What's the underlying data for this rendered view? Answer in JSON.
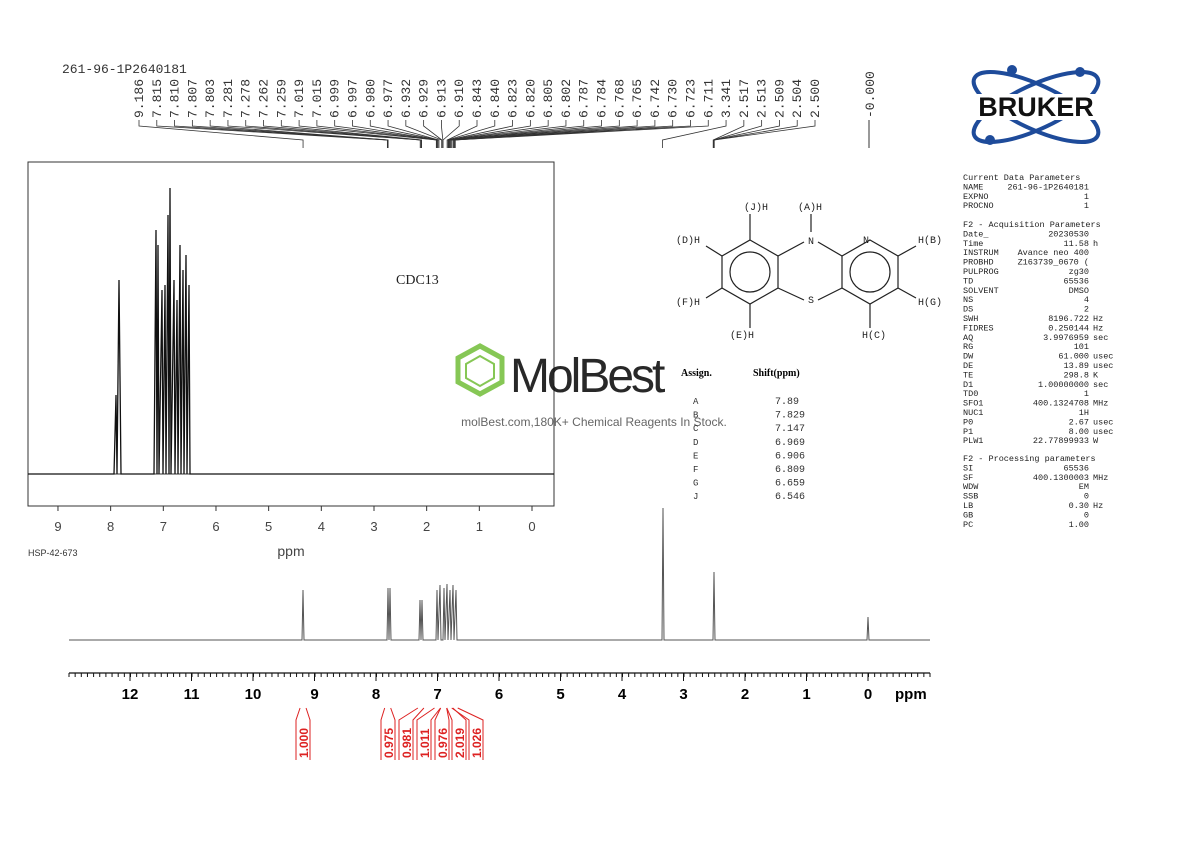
{
  "header": {
    "sample_id": "261-96-1P2640181",
    "solvent_note": "CDC13",
    "experiment_id": "HSP-42-673",
    "logo": "BRUKER"
  },
  "peak_labels": [
    "9.186",
    "7.815",
    "7.810",
    "7.807",
    "7.803",
    "7.281",
    "7.278",
    "7.262",
    "7.259",
    "7.019",
    "7.015",
    "6.999",
    "6.997",
    "6.980",
    "6.977",
    "6.932",
    "6.929",
    "6.913",
    "6.910",
    "6.843",
    "6.840",
    "6.823",
    "6.820",
    "6.805",
    "6.802",
    "6.787",
    "6.784",
    "6.768",
    "6.765",
    "6.742",
    "6.730",
    "6.723",
    "6.711",
    "3.341",
    "2.517",
    "2.513",
    "2.509",
    "2.504",
    "2.500"
  ],
  "reference_peak_label": "-0.000",
  "main_axis": {
    "ticks": [
      12,
      11,
      10,
      9,
      8,
      7,
      6,
      5,
      4,
      3,
      2,
      1,
      0
    ],
    "unit": "ppm"
  },
  "inset_axis": {
    "ticks": [
      9,
      8,
      7,
      6,
      5,
      4,
      3,
      2,
      1,
      0
    ],
    "unit": "ppm"
  },
  "integrals": [
    "1.000",
    "0.975",
    "0.981",
    "1.011",
    "0.976",
    "2.019",
    "1.026"
  ],
  "structure": {
    "labels": [
      "(J)H",
      "(A)H",
      "(D)H",
      "N",
      "N",
      "H(B)",
      "(F)H",
      "S",
      "H(G)",
      "(E)H",
      "H(C)"
    ]
  },
  "assignments": {
    "headers": [
      "Assign.",
      "Shift(ppm)"
    ],
    "rows": [
      [
        "A",
        "7.89"
      ],
      [
        "B",
        "7.829"
      ],
      [
        "C",
        "7.147"
      ],
      [
        "D",
        "6.969"
      ],
      [
        "E",
        "6.906"
      ],
      [
        "F",
        "6.809"
      ],
      [
        "G",
        "6.659"
      ],
      [
        "J",
        "6.546"
      ]
    ]
  },
  "watermark": {
    "brand": "MolBest",
    "tagline": "molBest.com,180K+ Chemical Reagents In Stock."
  },
  "parameters": [
    {
      "title": "Current Data Parameters",
      "rows": [
        [
          "NAME",
          "261-96-1P2640181"
        ],
        [
          "EXPNO",
          "1"
        ],
        [
          "PROCNO",
          "1"
        ]
      ]
    },
    {
      "title": "F2 - Acquisition Parameters",
      "rows": [
        [
          "Date_",
          "20230530"
        ],
        [
          "Time",
          "11.58",
          "h"
        ],
        [
          "INSTRUM",
          "Avance neo 400"
        ],
        [
          "PROBHD",
          "Z163739_0670 ("
        ],
        [
          "PULPROG",
          "zg30"
        ],
        [
          "TD",
          "65536"
        ],
        [
          "SOLVENT",
          "DMSO"
        ],
        [
          "NS",
          "4"
        ],
        [
          "DS",
          "2"
        ],
        [
          "SWH",
          "8196.722",
          "Hz"
        ],
        [
          "FIDRES",
          "0.250144",
          "Hz"
        ],
        [
          "AQ",
          "3.9976959",
          "sec"
        ],
        [
          "RG",
          "101"
        ],
        [
          "DW",
          "61.000",
          "usec"
        ],
        [
          "DE",
          "13.89",
          "usec"
        ],
        [
          "TE",
          "298.8",
          "K"
        ],
        [
          "D1",
          "1.00000000",
          "sec"
        ],
        [
          "TD0",
          "1"
        ],
        [
          "SFO1",
          "400.1324708",
          "MHz"
        ],
        [
          "NUC1",
          "1H"
        ],
        [
          "P0",
          "2.67",
          "usec"
        ],
        [
          "P1",
          "8.00",
          "usec"
        ],
        [
          "PLW1",
          "22.77899933",
          "W"
        ]
      ]
    },
    {
      "title": "F2 - Processing parameters",
      "rows": [
        [
          "SI",
          "65536"
        ],
        [
          "SF",
          "400.1300003",
          "MHz"
        ],
        [
          "WDW",
          "EM"
        ],
        [
          "SSB",
          "0"
        ],
        [
          "LB",
          "0.30",
          "Hz"
        ],
        [
          "GB",
          "0"
        ],
        [
          "PC",
          "1.00"
        ]
      ]
    }
  ]
}
